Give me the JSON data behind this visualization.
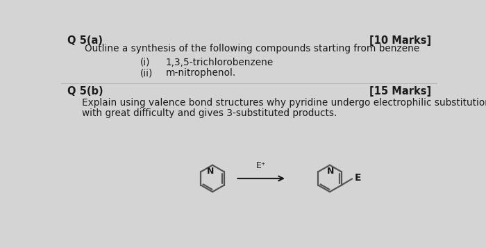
{
  "bg_color": "#d4d4d4",
  "title_q5a": "Q 5(a)",
  "marks_q5a": "[10 Marks]",
  "line1": "Outline a synthesis of the following compounds starting from benzene",
  "item_i_label": "(i)",
  "item_i_text": "1,3,5-trichlorobenzene",
  "item_ii_label": "(ii)",
  "item_ii_text": "m-nitrophenol.",
  "title_q5b": "Q 5(b)",
  "marks_q5b": "[15 Marks]",
  "line2a": "Explain using valence bond structures why pyridine undergo electrophilic substitution",
  "line2b": "with great difficulty and gives 3-substituted products.",
  "arrow_label": "E⁺",
  "e_label": "E",
  "n_label": "N",
  "text_color": "#1a1a1a",
  "bond_color": "#555555",
  "font_size_header": 10.5,
  "font_size_body": 9.8,
  "font_size_struct": 9.0
}
